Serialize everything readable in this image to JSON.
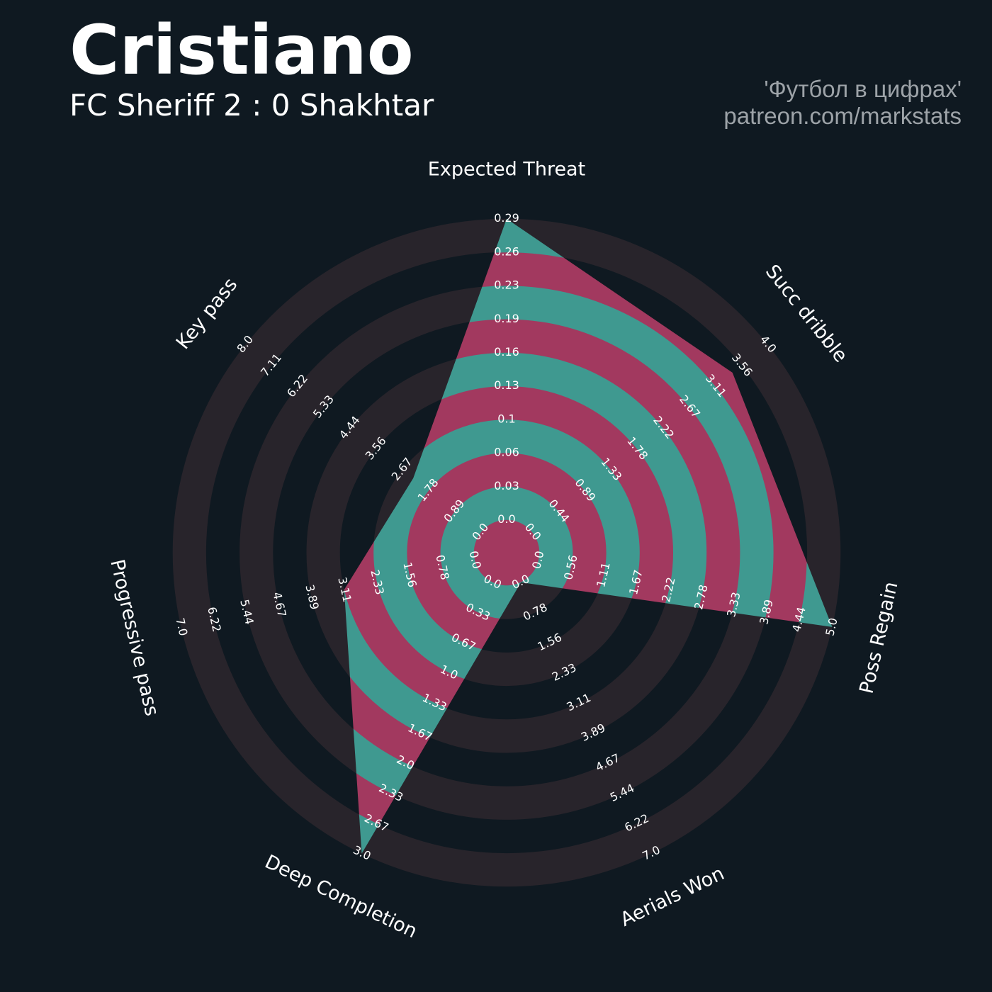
{
  "header": {
    "title": "Cristiano",
    "subtitle": "FC Sheriff 2 : 0 Shakhtar",
    "credit_line1": "'Футбол в цифрах'",
    "credit_line2": "patreon.com/markstats"
  },
  "colors": {
    "background": "#0f1921",
    "ring": "#28242b",
    "player_fill": "#3f9990",
    "player_alt": "#a2395f",
    "text": "#ffffff",
    "credit": "#9da3a8"
  },
  "chart_data": {
    "type": "radar",
    "rings": 10,
    "params": [
      {
        "name": "Expected Threat",
        "min": 0.0,
        "max": 0.29,
        "value": 0.29,
        "ticks": [
          "0.0",
          "0.03",
          "0.06",
          "0.1",
          "0.13",
          "0.16",
          "0.19",
          "0.23",
          "0.26",
          "0.29"
        ]
      },
      {
        "name": "Succ dribble",
        "min": 0.0,
        "max": 4.0,
        "value": 3.4,
        "ticks": [
          "0.0",
          "0.44",
          "0.89",
          "1.33",
          "1.78",
          "2.22",
          "2.67",
          "3.11",
          "3.56",
          "4.0"
        ]
      },
      {
        "name": "Poss Regain",
        "min": 0.0,
        "max": 5.0,
        "value": 5.0,
        "ticks": [
          "0.0",
          "0.56",
          "1.11",
          "1.67",
          "2.22",
          "2.78",
          "3.33",
          "3.89",
          "4.44",
          "5.0"
        ]
      },
      {
        "name": "Aerials Won",
        "min": 0.0,
        "max": 7.0,
        "value": 0.0,
        "ticks": [
          "0.0",
          "0.78",
          "1.56",
          "2.33",
          "3.11",
          "3.89",
          "4.67",
          "5.44",
          "6.22",
          "7.0"
        ]
      },
      {
        "name": "Deep Completion",
        "min": 0.0,
        "max": 3.0,
        "value": 3.0,
        "ticks": [
          "0.0",
          "0.33",
          "0.67",
          "1.0",
          "1.33",
          "1.67",
          "2.0",
          "2.33",
          "2.67",
          "3.0"
        ]
      },
      {
        "name": "Progressive pass",
        "min": 0.0,
        "max": 7.0,
        "value": 3.11,
        "ticks": [
          "0.0",
          "0.78",
          "1.56",
          "2.33",
          "3.11",
          "3.89",
          "4.67",
          "5.44",
          "6.22",
          "7.0"
        ]
      },
      {
        "name": "Key pass",
        "min": 0.0,
        "max": 8.0,
        "value": 2.3,
        "ticks": [
          "0.0",
          "0.89",
          "1.78",
          "2.67",
          "3.56",
          "4.44",
          "5.33",
          "6.22",
          "7.11",
          "8.0"
        ]
      }
    ]
  }
}
